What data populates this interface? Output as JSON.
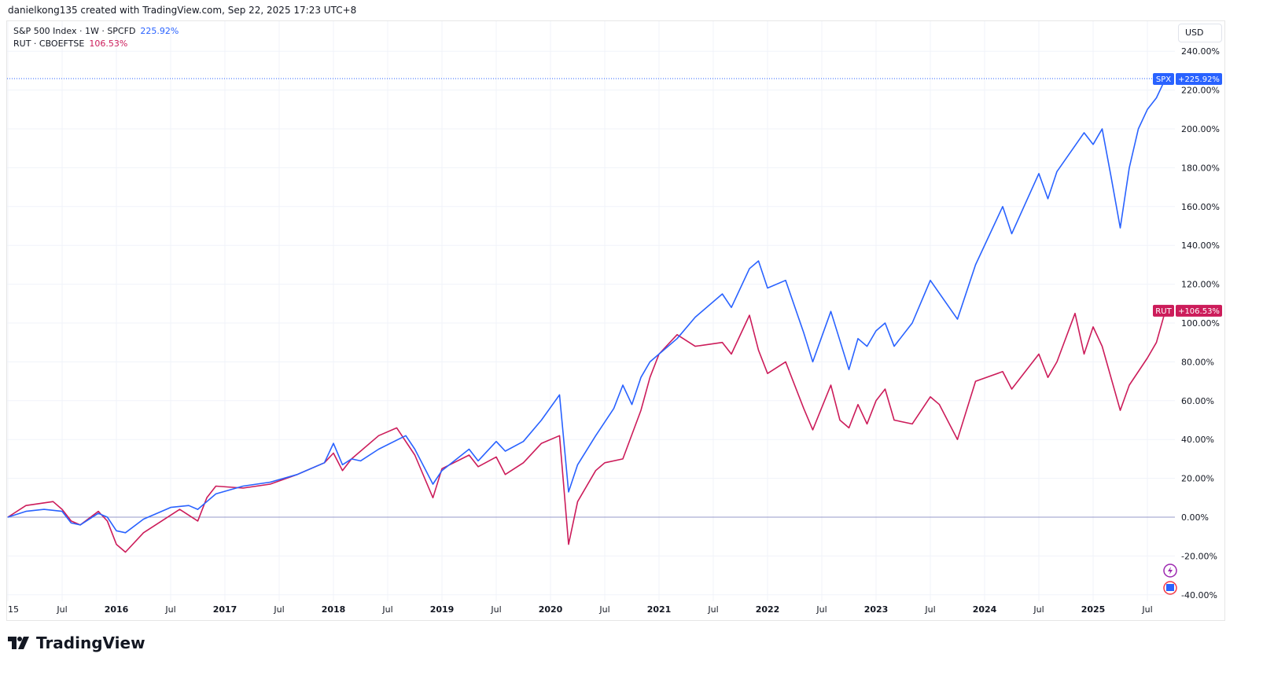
{
  "credit": "danielkong135 created with TradingView.com, Sep 22, 2025 17:23 UTC+8",
  "legend": {
    "spx_label": "S&P 500 Index · 1W · SPCFD",
    "spx_value": "225.92%",
    "rut_label": "RUT · CBOEFTSE",
    "rut_value": "106.53%"
  },
  "currency": "USD",
  "logo_text": "TradingView",
  "tags": {
    "spx": "SPX",
    "spx_value": "+225.92%",
    "rut": "RUT",
    "rut_value": "+106.53%"
  },
  "colors": {
    "spx": "#2962ff",
    "rut": "#cc1c5a"
  },
  "chart_data": {
    "type": "line",
    "ylabel": "",
    "ylim": [
      -40,
      240
    ],
    "y_ticks": [
      "240.00%",
      "220.00%",
      "200.00%",
      "180.00%",
      "160.00%",
      "140.00%",
      "120.00%",
      "100.00%",
      "80.00%",
      "60.00%",
      "40.00%",
      "20.00%",
      "0.00%",
      "-20.00%",
      "-40.00%"
    ],
    "x_ticks": [
      {
        "date": "2015-01",
        "label": "15"
      },
      {
        "date": "2015-07",
        "label": "Jul"
      },
      {
        "date": "2016-01",
        "label": "2016"
      },
      {
        "date": "2016-07",
        "label": "Jul"
      },
      {
        "date": "2017-01",
        "label": "2017"
      },
      {
        "date": "2017-07",
        "label": "Jul"
      },
      {
        "date": "2018-01",
        "label": "2018"
      },
      {
        "date": "2018-07",
        "label": "Jul"
      },
      {
        "date": "2019-01",
        "label": "2019"
      },
      {
        "date": "2019-07",
        "label": "Jul"
      },
      {
        "date": "2020-01",
        "label": "2020"
      },
      {
        "date": "2020-07",
        "label": "Jul"
      },
      {
        "date": "2021-01",
        "label": "2021"
      },
      {
        "date": "2021-07",
        "label": "Jul"
      },
      {
        "date": "2022-01",
        "label": "2022"
      },
      {
        "date": "2022-07",
        "label": "Jul"
      },
      {
        "date": "2023-01",
        "label": "2023"
      },
      {
        "date": "2023-07",
        "label": "Jul"
      },
      {
        "date": "2024-01",
        "label": "2024"
      },
      {
        "date": "2024-07",
        "label": "Jul"
      },
      {
        "date": "2025-01",
        "label": "2025"
      },
      {
        "date": "2025-07",
        "label": "Jul"
      }
    ],
    "grid": true,
    "series": [
      {
        "name": "SPX",
        "points": [
          [
            "2015-01",
            0
          ],
          [
            "2015-03",
            3
          ],
          [
            "2015-05",
            4
          ],
          [
            "2015-07",
            3
          ],
          [
            "2015-08",
            -3
          ],
          [
            "2015-09",
            -4
          ],
          [
            "2015-11",
            2
          ],
          [
            "2015-12",
            0
          ],
          [
            "2016-01",
            -7
          ],
          [
            "2016-02",
            -8
          ],
          [
            "2016-04",
            -1
          ],
          [
            "2016-06",
            3
          ],
          [
            "2016-07",
            5
          ],
          [
            "2016-09",
            6
          ],
          [
            "2016-10",
            4
          ],
          [
            "2016-11",
            8
          ],
          [
            "2016-12",
            12
          ],
          [
            "2017-03",
            16
          ],
          [
            "2017-06",
            18
          ],
          [
            "2017-09",
            22
          ],
          [
            "2017-12",
            28
          ],
          [
            "2018-01",
            38
          ],
          [
            "2018-02",
            27
          ],
          [
            "2018-03",
            30
          ],
          [
            "2018-04",
            29
          ],
          [
            "2018-06",
            35
          ],
          [
            "2018-09",
            42
          ],
          [
            "2018-10",
            35
          ],
          [
            "2018-12",
            17
          ],
          [
            "2019-01",
            24
          ],
          [
            "2019-04",
            35
          ],
          [
            "2019-05",
            29
          ],
          [
            "2019-07",
            39
          ],
          [
            "2019-08",
            34
          ],
          [
            "2019-10",
            39
          ],
          [
            "2019-12",
            50
          ],
          [
            "2020-02",
            63
          ],
          [
            "2020-03",
            13
          ],
          [
            "2020-04",
            27
          ],
          [
            "2020-06",
            42
          ],
          [
            "2020-08",
            56
          ],
          [
            "2020-09",
            68
          ],
          [
            "2020-10",
            58
          ],
          [
            "2020-11",
            72
          ],
          [
            "2020-12",
            80
          ],
          [
            "2021-01",
            84
          ],
          [
            "2021-03",
            92
          ],
          [
            "2021-05",
            103
          ],
          [
            "2021-08",
            115
          ],
          [
            "2021-09",
            108
          ],
          [
            "2021-11",
            128
          ],
          [
            "2021-12",
            132
          ],
          [
            "2022-01",
            118
          ],
          [
            "2022-03",
            122
          ],
          [
            "2022-05",
            95
          ],
          [
            "2022-06",
            80
          ],
          [
            "2022-08",
            106
          ],
          [
            "2022-10",
            76
          ],
          [
            "2022-11",
            92
          ],
          [
            "2022-12",
            88
          ],
          [
            "2023-01",
            96
          ],
          [
            "2023-02",
            100
          ],
          [
            "2023-03",
            88
          ],
          [
            "2023-05",
            100
          ],
          [
            "2023-07",
            122
          ],
          [
            "2023-10",
            102
          ],
          [
            "2023-12",
            130
          ],
          [
            "2024-03",
            160
          ],
          [
            "2024-04",
            146
          ],
          [
            "2024-07",
            177
          ],
          [
            "2024-08",
            164
          ],
          [
            "2024-09",
            178
          ],
          [
            "2024-12",
            198
          ],
          [
            "2025-01",
            192
          ],
          [
            "2025-02",
            200
          ],
          [
            "2025-03",
            175
          ],
          [
            "2025-04",
            149
          ],
          [
            "2025-05",
            180
          ],
          [
            "2025-06",
            200
          ],
          [
            "2025-07",
            210
          ],
          [
            "2025-08",
            216
          ],
          [
            "2025-09",
            225.92
          ]
        ]
      },
      {
        "name": "RUT",
        "points": [
          [
            "2015-01",
            0
          ],
          [
            "2015-03",
            6
          ],
          [
            "2015-06",
            8
          ],
          [
            "2015-07",
            4
          ],
          [
            "2015-08",
            -2
          ],
          [
            "2015-09",
            -4
          ],
          [
            "2015-11",
            3
          ],
          [
            "2015-12",
            -2
          ],
          [
            "2016-01",
            -14
          ],
          [
            "2016-02",
            -18
          ],
          [
            "2016-04",
            -8
          ],
          [
            "2016-06",
            -2
          ],
          [
            "2016-08",
            4
          ],
          [
            "2016-10",
            -2
          ],
          [
            "2016-11",
            10
          ],
          [
            "2016-12",
            16
          ],
          [
            "2017-03",
            15
          ],
          [
            "2017-06",
            17
          ],
          [
            "2017-09",
            22
          ],
          [
            "2017-12",
            28
          ],
          [
            "2018-01",
            33
          ],
          [
            "2018-02",
            24
          ],
          [
            "2018-03",
            30
          ],
          [
            "2018-06",
            42
          ],
          [
            "2018-08",
            46
          ],
          [
            "2018-10",
            32
          ],
          [
            "2018-12",
            10
          ],
          [
            "2019-01",
            25
          ],
          [
            "2019-04",
            32
          ],
          [
            "2019-05",
            26
          ],
          [
            "2019-07",
            31
          ],
          [
            "2019-08",
            22
          ],
          [
            "2019-10",
            28
          ],
          [
            "2019-12",
            38
          ],
          [
            "2020-02",
            42
          ],
          [
            "2020-03",
            -14
          ],
          [
            "2020-04",
            8
          ],
          [
            "2020-06",
            24
          ],
          [
            "2020-07",
            28
          ],
          [
            "2020-09",
            30
          ],
          [
            "2020-11",
            55
          ],
          [
            "2020-12",
            72
          ],
          [
            "2021-01",
            84
          ],
          [
            "2021-03",
            94
          ],
          [
            "2021-05",
            88
          ],
          [
            "2021-08",
            90
          ],
          [
            "2021-09",
            84
          ],
          [
            "2021-11",
            104
          ],
          [
            "2021-12",
            86
          ],
          [
            "2022-01",
            74
          ],
          [
            "2022-03",
            80
          ],
          [
            "2022-05",
            56
          ],
          [
            "2022-06",
            45
          ],
          [
            "2022-08",
            68
          ],
          [
            "2022-09",
            50
          ],
          [
            "2022-10",
            46
          ],
          [
            "2022-11",
            58
          ],
          [
            "2022-12",
            48
          ],
          [
            "2023-01",
            60
          ],
          [
            "2023-02",
            66
          ],
          [
            "2023-03",
            50
          ],
          [
            "2023-05",
            48
          ],
          [
            "2023-07",
            62
          ],
          [
            "2023-08",
            58
          ],
          [
            "2023-10",
            40
          ],
          [
            "2023-12",
            70
          ],
          [
            "2024-03",
            75
          ],
          [
            "2024-04",
            66
          ],
          [
            "2024-07",
            84
          ],
          [
            "2024-08",
            72
          ],
          [
            "2024-09",
            80
          ],
          [
            "2024-11",
            105
          ],
          [
            "2024-12",
            84
          ],
          [
            "2025-01",
            98
          ],
          [
            "2025-02",
            88
          ],
          [
            "2025-04",
            55
          ],
          [
            "2025-05",
            68
          ],
          [
            "2025-07",
            82
          ],
          [
            "2025-08",
            90
          ],
          [
            "2025-09",
            106.53
          ]
        ]
      }
    ]
  }
}
